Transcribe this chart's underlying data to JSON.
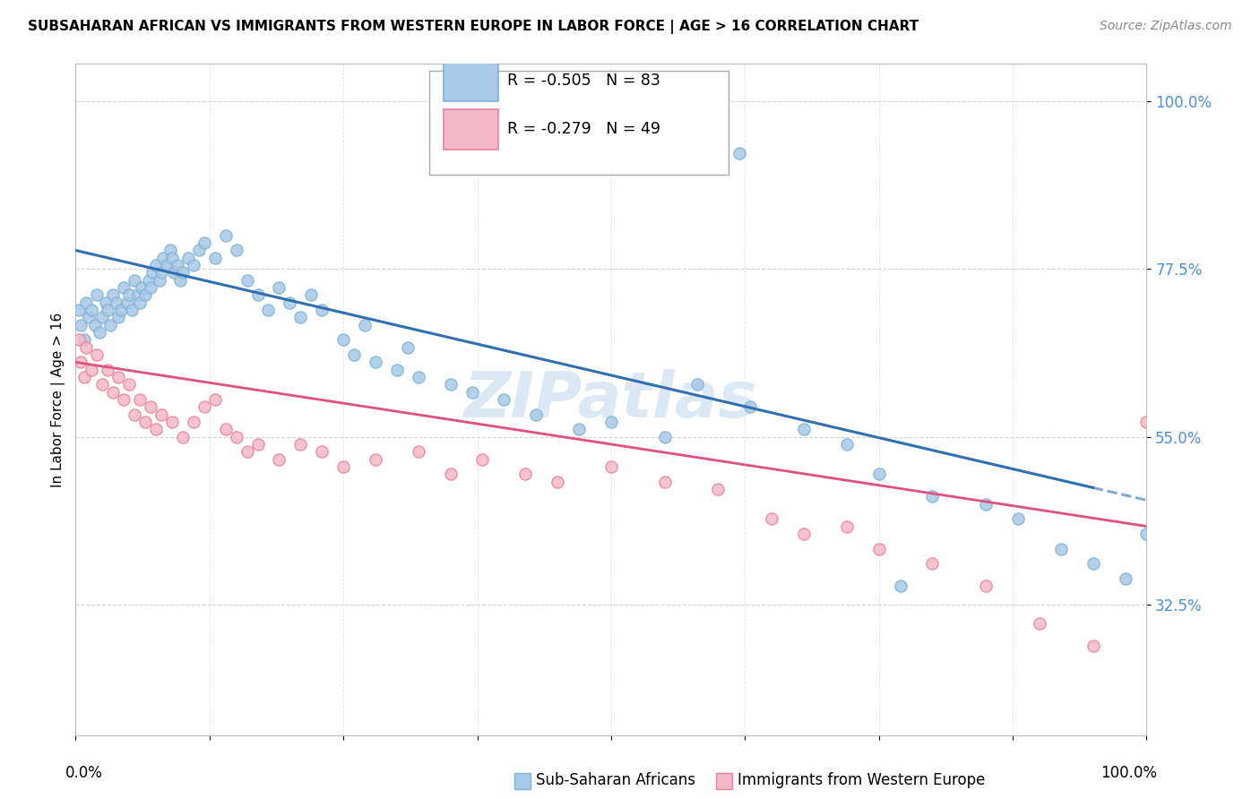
{
  "title": "SUBSAHARAN AFRICAN VS IMMIGRANTS FROM WESTERN EUROPE IN LABOR FORCE | AGE > 16 CORRELATION CHART",
  "source": "Source: ZipAtlas.com",
  "ylabel": "In Labor Force | Age > 16",
  "yticks": [
    0.325,
    0.55,
    0.775,
    1.0
  ],
  "ytick_labels": [
    "32.5%",
    "55.0%",
    "77.5%",
    "100.0%"
  ],
  "legend_label1": "Sub-Saharan Africans",
  "legend_label2": "Immigrants from Western Europe",
  "R1": -0.505,
  "N1": 83,
  "R2": -0.279,
  "N2": 49,
  "blue_scatter_color": "#a8c8e8",
  "blue_edge_color": "#7fb3d3",
  "pink_scatter_color": "#f4b8c8",
  "pink_edge_color": "#e8839a",
  "line_blue": "#3070b0",
  "line_pink": "#e05080",
  "blue_line_start_y": 0.8,
  "blue_line_end_y": 0.465,
  "pink_line_start_y": 0.65,
  "pink_line_end_y": 0.43,
  "blue_scatter_x": [
    0.3,
    0.5,
    0.8,
    1.0,
    1.2,
    1.5,
    1.8,
    2.0,
    2.2,
    2.5,
    2.8,
    3.0,
    3.2,
    3.5,
    3.8,
    4.0,
    4.2,
    4.5,
    4.8,
    5.0,
    5.2,
    5.5,
    5.8,
    6.0,
    6.2,
    6.5,
    6.8,
    7.0,
    7.2,
    7.5,
    7.8,
    8.0,
    8.2,
    8.5,
    8.8,
    9.0,
    9.2,
    9.5,
    9.8,
    10.0,
    10.5,
    11.0,
    11.5,
    12.0,
    13.0,
    14.0,
    15.0,
    16.0,
    17.0,
    18.0,
    19.0,
    20.0,
    21.0,
    22.0,
    23.0,
    25.0,
    26.0,
    27.0,
    28.0,
    30.0,
    31.0,
    32.0,
    35.0,
    37.0,
    40.0,
    43.0,
    47.0,
    50.0,
    55.0,
    58.0,
    63.0,
    68.0,
    72.0,
    75.0,
    80.0,
    85.0,
    88.0,
    92.0,
    95.0,
    98.0,
    100.0,
    62.0,
    77.0
  ],
  "blue_scatter_y": [
    0.72,
    0.7,
    0.68,
    0.73,
    0.71,
    0.72,
    0.7,
    0.74,
    0.69,
    0.71,
    0.73,
    0.72,
    0.7,
    0.74,
    0.73,
    0.71,
    0.72,
    0.75,
    0.73,
    0.74,
    0.72,
    0.76,
    0.74,
    0.73,
    0.75,
    0.74,
    0.76,
    0.75,
    0.77,
    0.78,
    0.76,
    0.77,
    0.79,
    0.78,
    0.8,
    0.79,
    0.77,
    0.78,
    0.76,
    0.77,
    0.79,
    0.78,
    0.8,
    0.81,
    0.79,
    0.82,
    0.8,
    0.76,
    0.74,
    0.72,
    0.75,
    0.73,
    0.71,
    0.74,
    0.72,
    0.68,
    0.66,
    0.7,
    0.65,
    0.64,
    0.67,
    0.63,
    0.62,
    0.61,
    0.6,
    0.58,
    0.56,
    0.57,
    0.55,
    0.62,
    0.59,
    0.56,
    0.54,
    0.5,
    0.47,
    0.46,
    0.44,
    0.4,
    0.38,
    0.36,
    0.42,
    0.93,
    0.35
  ],
  "pink_scatter_x": [
    0.3,
    0.5,
    0.8,
    1.0,
    1.5,
    2.0,
    2.5,
    3.0,
    3.5,
    4.0,
    4.5,
    5.0,
    5.5,
    6.0,
    6.5,
    7.0,
    7.5,
    8.0,
    9.0,
    10.0,
    11.0,
    12.0,
    13.0,
    14.0,
    15.0,
    16.0,
    17.0,
    19.0,
    21.0,
    23.0,
    25.0,
    28.0,
    32.0,
    35.0,
    38.0,
    42.0,
    45.0,
    50.0,
    55.0,
    60.0,
    65.0,
    68.0,
    72.0,
    75.0,
    80.0,
    85.0,
    90.0,
    95.0,
    100.0
  ],
  "pink_scatter_y": [
    0.68,
    0.65,
    0.63,
    0.67,
    0.64,
    0.66,
    0.62,
    0.64,
    0.61,
    0.63,
    0.6,
    0.62,
    0.58,
    0.6,
    0.57,
    0.59,
    0.56,
    0.58,
    0.57,
    0.55,
    0.57,
    0.59,
    0.6,
    0.56,
    0.55,
    0.53,
    0.54,
    0.52,
    0.54,
    0.53,
    0.51,
    0.52,
    0.53,
    0.5,
    0.52,
    0.5,
    0.49,
    0.51,
    0.49,
    0.48,
    0.44,
    0.42,
    0.43,
    0.4,
    0.38,
    0.35,
    0.3,
    0.27,
    0.57
  ],
  "xmin": 0.0,
  "xmax": 100.0,
  "ymin": 0.15,
  "ymax": 1.05,
  "watermark": "ZIPatlas",
  "background_color": "#ffffff",
  "grid_color": "#d0d0d0",
  "watermark_color": "#dde8f5"
}
